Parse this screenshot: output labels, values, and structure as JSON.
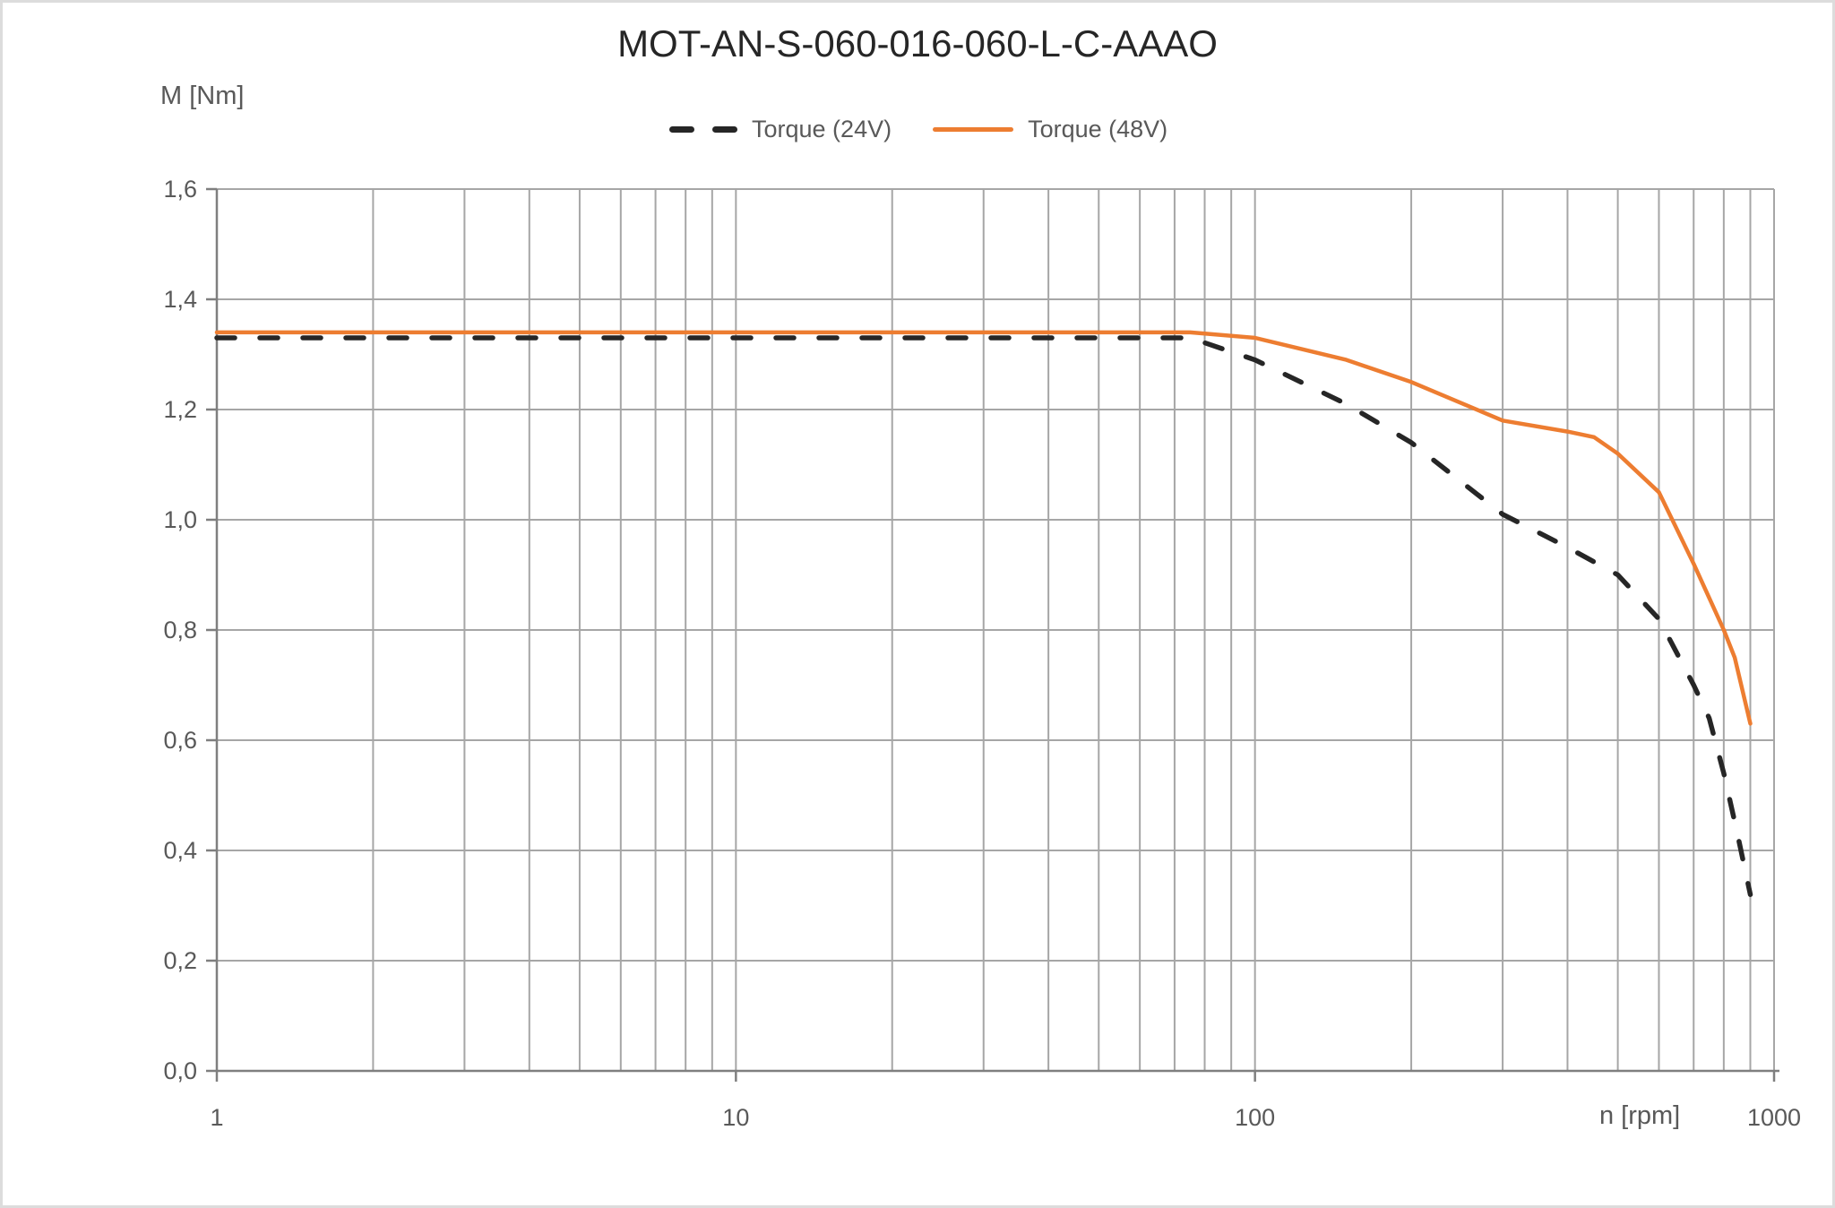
{
  "title": "MOT-AN-S-060-016-060-L-C-AAAO",
  "legend": {
    "items": [
      {
        "label": "Torque (24V)",
        "color": "#262626",
        "style": "dashed"
      },
      {
        "label": "Torque (48V)",
        "color": "#ED7D31",
        "style": "solid"
      }
    ]
  },
  "chart_data": {
    "type": "line",
    "title": "MOT-AN-S-060-016-060-L-C-AAAO",
    "x_axis": {
      "label": "n [rpm]",
      "scale": "log",
      "min": 1,
      "max": 1000,
      "minor_gridlines": [
        2,
        3,
        4,
        5,
        6,
        7,
        8,
        9,
        20,
        30,
        40,
        50,
        60,
        70,
        80,
        90,
        200,
        300,
        400,
        500,
        600,
        700,
        800,
        900
      ],
      "ticks": [
        {
          "value": 1,
          "label": "1"
        },
        {
          "value": 10,
          "label": "10"
        },
        {
          "value": 100,
          "label": "100"
        },
        {
          "value": 1000,
          "label": "1000"
        }
      ]
    },
    "y_axis": {
      "label": "M [Nm]",
      "scale": "linear",
      "min": 0,
      "max": 1.6,
      "tick_step": 0.2,
      "ticks": [
        {
          "value": 0.0,
          "label": "0,0"
        },
        {
          "value": 0.2,
          "label": "0,2"
        },
        {
          "value": 0.4,
          "label": "0,4"
        },
        {
          "value": 0.6,
          "label": "0,6"
        },
        {
          "value": 0.8,
          "label": "0,8"
        },
        {
          "value": 1.0,
          "label": "1,0"
        },
        {
          "value": 1.2,
          "label": "1,2"
        },
        {
          "value": 1.4,
          "label": "1,4"
        },
        {
          "value": 1.6,
          "label": "1,6"
        }
      ]
    },
    "series": [
      {
        "name": "Torque (24V)",
        "color": "#262626",
        "line_style": "dashed",
        "points": [
          [
            1,
            1.33
          ],
          [
            75,
            1.33
          ],
          [
            100,
            1.29
          ],
          [
            150,
            1.21
          ],
          [
            200,
            1.14
          ],
          [
            300,
            1.01
          ],
          [
            400,
            0.95
          ],
          [
            500,
            0.9
          ],
          [
            600,
            0.82
          ],
          [
            700,
            0.7
          ],
          [
            750,
            0.64
          ],
          [
            800,
            0.54
          ],
          [
            850,
            0.43
          ],
          [
            900,
            0.32
          ]
        ]
      },
      {
        "name": "Torque (48V)",
        "color": "#ED7D31",
        "line_style": "solid",
        "points": [
          [
            1,
            1.34
          ],
          [
            75,
            1.34
          ],
          [
            100,
            1.33
          ],
          [
            150,
            1.29
          ],
          [
            200,
            1.25
          ],
          [
            300,
            1.18
          ],
          [
            400,
            1.16
          ],
          [
            450,
            1.15
          ],
          [
            500,
            1.12
          ],
          [
            600,
            1.05
          ],
          [
            700,
            0.92
          ],
          [
            800,
            0.8
          ],
          [
            840,
            0.75
          ],
          [
            900,
            0.63
          ]
        ]
      }
    ],
    "colors": {
      "gridline": "#a6a6a6",
      "axis": "#7f7f7f",
      "tick_label": "#595959",
      "title": "#262626"
    },
    "legend_position": "top"
  }
}
